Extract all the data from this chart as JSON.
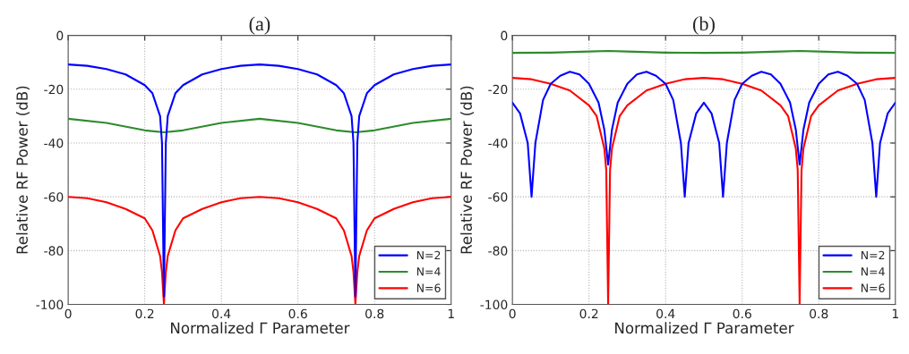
{
  "chart_data": [
    {
      "type": "line",
      "title": "(a)",
      "xlabel": "Normalized Γ Parameter",
      "ylabel": "Relative RF Power (dB)",
      "xlim": [
        0,
        1
      ],
      "ylim": [
        -100,
        0
      ],
      "xticks": [
        0,
        0.2,
        0.4,
        0.6,
        0.8,
        1
      ],
      "yticks": [
        -100,
        -80,
        -60,
        -40,
        -20,
        0
      ],
      "grid": true,
      "legend": "bottom right",
      "line_style": "solid",
      "series": [
        {
          "name": "N=2",
          "color": "#0000ff",
          "x": [
            0,
            0.05,
            0.1,
            0.15,
            0.2,
            0.22,
            0.24,
            0.245,
            0.25,
            0.255,
            0.26,
            0.28,
            0.3,
            0.35,
            0.4,
            0.45,
            0.5,
            0.55,
            0.6,
            0.65,
            0.7,
            0.72,
            0.74,
            0.745,
            0.75,
            0.755,
            0.76,
            0.78,
            0.8,
            0.85,
            0.9,
            0.95,
            1
          ],
          "values": [
            -10.8,
            -11.3,
            -12.5,
            -14.5,
            -18.5,
            -21.5,
            -30,
            -40,
            -97,
            -40,
            -30,
            -21.5,
            -18.5,
            -14.5,
            -12.5,
            -11.3,
            -10.8,
            -11.3,
            -12.5,
            -14.5,
            -18.5,
            -21.5,
            -30,
            -40,
            -97,
            -40,
            -30,
            -21.5,
            -18.5,
            -14.5,
            -12.5,
            -11.3,
            -10.8
          ]
        },
        {
          "name": "N=4",
          "color": "#2e8b2e",
          "x": [
            0,
            0.1,
            0.2,
            0.25,
            0.3,
            0.4,
            0.5,
            0.6,
            0.7,
            0.75,
            0.8,
            0.9,
            1
          ],
          "values": [
            -31,
            -32.5,
            -35.3,
            -36,
            -35.3,
            -32.5,
            -31,
            -32.5,
            -35.3,
            -36,
            -35.3,
            -32.5,
            -31
          ]
        },
        {
          "name": "N=6",
          "color": "#ff0000",
          "x": [
            0,
            0.05,
            0.1,
            0.15,
            0.2,
            0.22,
            0.24,
            0.245,
            0.25,
            0.255,
            0.26,
            0.28,
            0.3,
            0.35,
            0.4,
            0.45,
            0.5,
            0.55,
            0.6,
            0.65,
            0.7,
            0.72,
            0.74,
            0.745,
            0.75,
            0.755,
            0.76,
            0.78,
            0.8,
            0.85,
            0.9,
            0.95,
            1
          ],
          "values": [
            -60,
            -60.5,
            -62,
            -64.5,
            -68,
            -72.5,
            -82,
            -88,
            -100,
            -88,
            -82,
            -72.5,
            -68,
            -64.5,
            -62,
            -60.5,
            -60,
            -60.5,
            -62,
            -64.5,
            -68,
            -72.5,
            -82,
            -88,
            -100,
            -88,
            -82,
            -72.5,
            -68,
            -64.5,
            -62,
            -60.5,
            -60
          ]
        }
      ]
    },
    {
      "type": "line",
      "title": "(b)",
      "xlabel": "Normalized Γ Parameter",
      "ylabel": "Relative RF Power (dB)",
      "xlim": [
        0,
        1
      ],
      "ylim": [
        -100,
        0
      ],
      "xticks": [
        0,
        0.2,
        0.4,
        0.6,
        0.8,
        1
      ],
      "yticks": [
        -100,
        -80,
        -60,
        -40,
        -20,
        0
      ],
      "grid": true,
      "legend": "bottom right",
      "line_style": "solid",
      "series": [
        {
          "name": "N=2",
          "color": "#0000ff",
          "x": [
            0,
            0.02,
            0.04,
            0.05,
            0.06,
            0.08,
            0.1,
            0.125,
            0.15,
            0.175,
            0.2,
            0.225,
            0.24,
            0.25,
            0.26,
            0.275,
            0.3,
            0.325,
            0.35,
            0.375,
            0.4,
            0.42,
            0.44,
            0.45,
            0.46,
            0.48,
            0.5,
            0.52,
            0.54,
            0.55,
            0.56,
            0.58,
            0.6,
            0.625,
            0.65,
            0.675,
            0.7,
            0.725,
            0.74,
            0.75,
            0.76,
            0.775,
            0.8,
            0.825,
            0.85,
            0.875,
            0.9,
            0.92,
            0.94,
            0.95,
            0.96,
            0.98,
            1
          ],
          "values": [
            -25,
            -29,
            -40,
            -60,
            -40,
            -24,
            -18,
            -15,
            -13.5,
            -14.5,
            -18,
            -25,
            -35,
            -48,
            -35,
            -25,
            -18,
            -14.5,
            -13.5,
            -15,
            -18,
            -24,
            -40,
            -60,
            -40,
            -29,
            -25,
            -29,
            -40,
            -60,
            -40,
            -24,
            -18,
            -15,
            -13.5,
            -14.5,
            -18,
            -25,
            -35,
            -48,
            -35,
            -25,
            -18,
            -14.5,
            -13.5,
            -15,
            -18,
            -24,
            -40,
            -60,
            -40,
            -29,
            -25
          ]
        },
        {
          "name": "N=4",
          "color": "#2e8b2e",
          "x": [
            0,
            0.1,
            0.2,
            0.25,
            0.3,
            0.4,
            0.5,
            0.6,
            0.7,
            0.75,
            0.8,
            0.9,
            1
          ],
          "values": [
            -6.5,
            -6.4,
            -6,
            -5.8,
            -6,
            -6.4,
            -6.5,
            -6.4,
            -6,
            -5.8,
            -6,
            -6.4,
            -6.5
          ]
        },
        {
          "name": "N=6",
          "color": "#ff0000",
          "x": [
            0,
            0.05,
            0.1,
            0.15,
            0.2,
            0.22,
            0.24,
            0.245,
            0.25,
            0.255,
            0.26,
            0.28,
            0.3,
            0.35,
            0.4,
            0.45,
            0.5,
            0.55,
            0.6,
            0.65,
            0.7,
            0.72,
            0.74,
            0.745,
            0.75,
            0.755,
            0.76,
            0.78,
            0.8,
            0.85,
            0.9,
            0.95,
            1
          ],
          "values": [
            -15.8,
            -16.3,
            -18,
            -20.5,
            -26,
            -30,
            -42,
            -50,
            -100,
            -50,
            -42,
            -30,
            -26,
            -20.5,
            -18,
            -16.3,
            -15.8,
            -16.3,
            -18,
            -20.5,
            -26,
            -30,
            -42,
            -50,
            -100,
            -50,
            -42,
            -30,
            -26,
            -20.5,
            -18,
            -16.3,
            -15.8
          ]
        }
      ]
    }
  ]
}
